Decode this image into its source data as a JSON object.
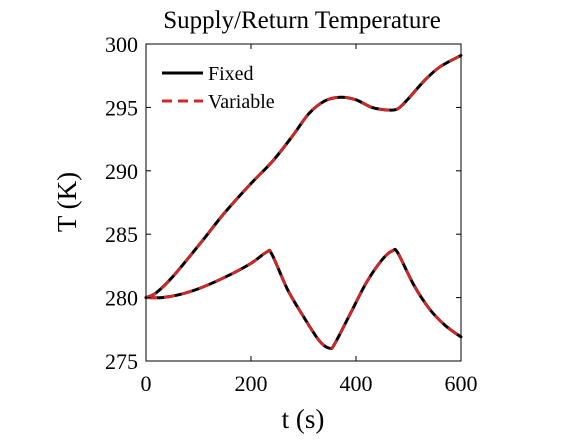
{
  "chart_data": {
    "type": "line",
    "title": "Supply/Return Temperature",
    "xlabel": "t (s)",
    "ylabel": "T (K)",
    "xlim": [
      0,
      600
    ],
    "ylim": [
      275,
      300
    ],
    "xticks": [
      0,
      200,
      400,
      600
    ],
    "yticks": [
      275,
      280,
      285,
      290,
      295,
      300
    ],
    "grid": false,
    "legend_position": "top-left",
    "colors": {
      "fixed": "#000000",
      "variable": "#d62728"
    },
    "legend": [
      {
        "label": "Fixed",
        "style": "solid",
        "color": "#000000"
      },
      {
        "label": "Variable",
        "style": "dashed",
        "color": "#d62728"
      }
    ],
    "series": [
      {
        "name": "Fixed",
        "style": "solid",
        "color": "#000000",
        "curves": [
          {
            "x": [
              0,
              20,
              50,
              100,
              150,
              200,
              240,
              280,
              310,
              340,
              370,
              400,
              430,
              460,
              480,
              500,
              530,
              560,
              600
            ],
            "y": [
              280.0,
              280.4,
              281.6,
              284.1,
              286.7,
              289.0,
              290.7,
              292.8,
              294.5,
              295.5,
              295.8,
              295.6,
              295.0,
              294.8,
              294.9,
              295.7,
              297.1,
              298.2,
              299.1
            ]
          },
          {
            "x": [
              0,
              30,
              60,
              100,
              150,
              200,
              230,
              240,
              270,
              300,
              330,
              350,
              360,
              390,
              420,
              450,
              470,
              480,
              510,
              540,
              570,
              600
            ],
            "y": [
              280.0,
              280.0,
              280.2,
              280.7,
              281.6,
              282.7,
              283.6,
              283.4,
              280.6,
              278.5,
              276.6,
              276.0,
              276.4,
              278.8,
              281.2,
              283.0,
              283.7,
              283.5,
              281.0,
              279.1,
              277.8,
              276.9
            ]
          }
        ]
      },
      {
        "name": "Variable",
        "style": "dashed",
        "color": "#d62728",
        "curves": [
          {
            "x": [
              0,
              20,
              50,
              100,
              150,
              200,
              240,
              280,
              310,
              340,
              370,
              400,
              430,
              460,
              480,
              500,
              530,
              560,
              600
            ],
            "y": [
              280.0,
              280.4,
              281.6,
              284.1,
              286.7,
              289.0,
              290.7,
              292.8,
              294.5,
              295.5,
              295.8,
              295.6,
              295.0,
              294.8,
              294.9,
              295.7,
              297.1,
              298.2,
              299.1
            ]
          },
          {
            "x": [
              0,
              30,
              60,
              100,
              150,
              200,
              230,
              240,
              270,
              300,
              330,
              350,
              360,
              390,
              420,
              450,
              470,
              480,
              510,
              540,
              570,
              600
            ],
            "y": [
              280.0,
              280.0,
              280.2,
              280.7,
              281.6,
              282.7,
              283.6,
              283.4,
              280.6,
              278.5,
              276.6,
              276.0,
              276.4,
              278.8,
              281.2,
              283.0,
              283.7,
              283.5,
              281.0,
              279.1,
              277.8,
              276.9
            ]
          }
        ]
      }
    ]
  }
}
